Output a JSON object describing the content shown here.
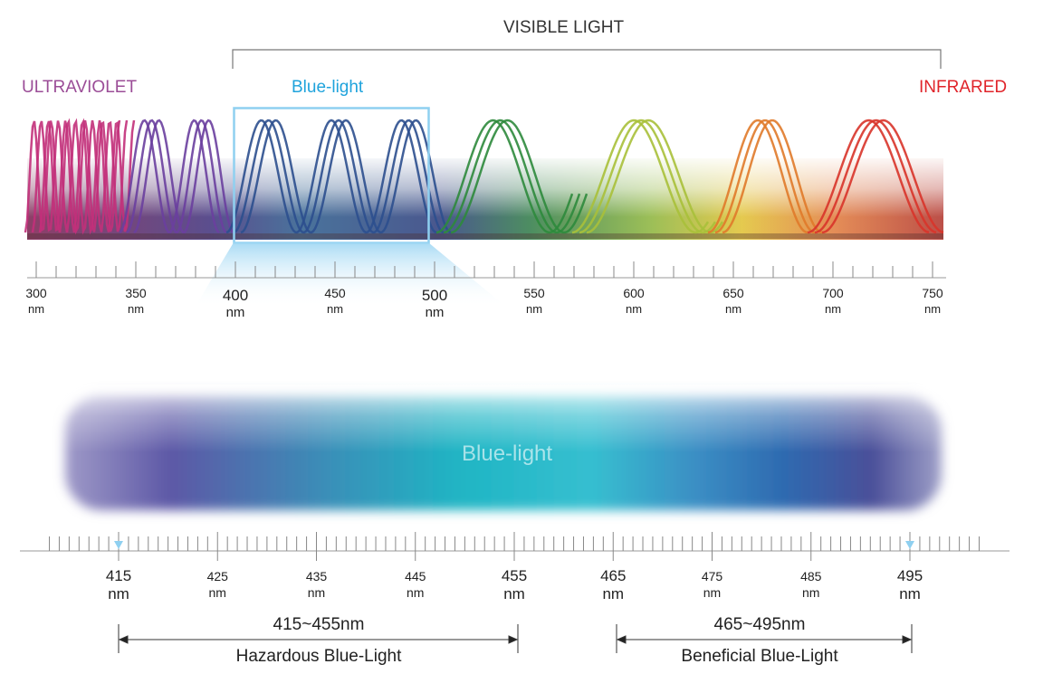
{
  "header": {
    "visible_light": "VISIBLE LIGHT",
    "ultraviolet": "ULTRAVIOLET",
    "infrared": "INFRARED",
    "blue_light": "Blue-light"
  },
  "colors": {
    "ultraviolet": "#9b4d97",
    "infrared": "#e0242a",
    "blue_light": "#1fa3dc",
    "selection_box": "#8fd0f0"
  },
  "spectrum_axis": {
    "unit": "nm",
    "ticks": [
      {
        "value": "300",
        "emphasis": false
      },
      {
        "value": "350",
        "emphasis": false
      },
      {
        "value": "400",
        "emphasis": true
      },
      {
        "value": "450",
        "emphasis": false
      },
      {
        "value": "500",
        "emphasis": true
      },
      {
        "value": "550",
        "emphasis": false
      },
      {
        "value": "600",
        "emphasis": false
      },
      {
        "value": "650",
        "emphasis": false
      },
      {
        "value": "700",
        "emphasis": false
      },
      {
        "value": "750",
        "emphasis": false
      }
    ]
  },
  "band": {
    "label": "Blue-light"
  },
  "blue_axis": {
    "unit": "nm",
    "ticks": [
      {
        "value": "415",
        "emphasis": true
      },
      {
        "value": "425",
        "emphasis": false
      },
      {
        "value": "435",
        "emphasis": false
      },
      {
        "value": "445",
        "emphasis": false
      },
      {
        "value": "455",
        "emphasis": true
      },
      {
        "value": "465",
        "emphasis": true
      },
      {
        "value": "475",
        "emphasis": false
      },
      {
        "value": "485",
        "emphasis": false
      },
      {
        "value": "495",
        "emphasis": true
      }
    ]
  },
  "ranges": {
    "hazardous": {
      "range": "415~455nm",
      "label": "Hazardous Blue-Light"
    },
    "beneficial": {
      "range": "465~495nm",
      "label": "Beneficial Blue-Light"
    }
  }
}
